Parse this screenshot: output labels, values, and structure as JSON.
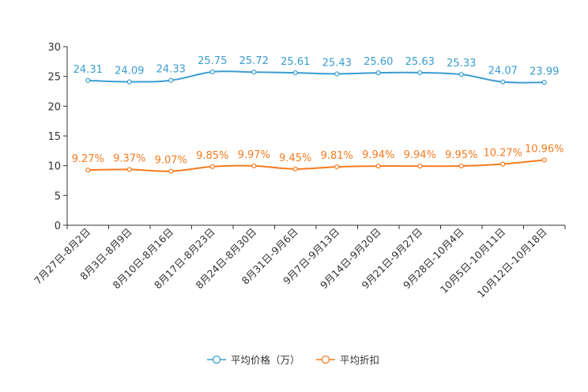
{
  "chart_data": {
    "type": "line",
    "title": "",
    "xlabel": "",
    "ylabel": "",
    "ylim": [
      0,
      30
    ],
    "yticks": [
      0,
      5,
      10,
      15,
      20,
      25,
      30
    ],
    "categories": [
      "7月27日-8月2日",
      "8月3日-8月9日",
      "8月10日-8月16日",
      "8月17日-8月23日",
      "8月24日-8月30日",
      "8月31日-9月6日",
      "9月7日-9月13日",
      "9月14日-9月20日",
      "9月21日-9月27日",
      "9月28日-10月4日",
      "10月5日-10月11日",
      "10月12日-10月18日"
    ],
    "series": [
      {
        "name": "平均价格（万）",
        "color": "#3a9dd1",
        "values": [
          24.31,
          24.09,
          24.33,
          25.75,
          25.72,
          25.61,
          25.43,
          25.6,
          25.63,
          25.33,
          24.07,
          23.99
        ],
        "labels": [
          "24.31",
          "24.09",
          "24.33",
          "25.75",
          "25.72",
          "25.61",
          "25.43",
          "25.60",
          "25.63",
          "25.33",
          "24.07",
          "23.99"
        ]
      },
      {
        "name": "平均折扣",
        "color": "#f47b20",
        "values": [
          9.27,
          9.37,
          9.07,
          9.85,
          9.97,
          9.45,
          9.81,
          9.94,
          9.94,
          9.95,
          10.27,
          10.96
        ],
        "labels": [
          "9.27%",
          "9.37%",
          "9.07%",
          "9.85%",
          "9.97%",
          "9.45%",
          "9.81%",
          "9.94%",
          "9.94%",
          "9.95%",
          "10.27%",
          "10.96%"
        ]
      }
    ],
    "legend_position": "bottom-center",
    "grid": false
  }
}
